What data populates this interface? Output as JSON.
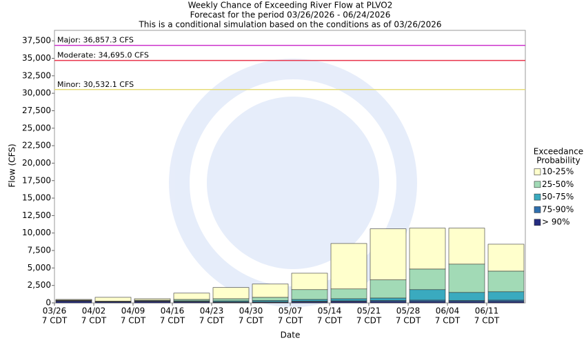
{
  "chart_data": {
    "type": "stacked-bar",
    "title": [
      "Weekly Chance of Exceeding River Flow at PLVO2",
      "Forecast for the period 03/26/2026 - 06/24/2026",
      "This is a conditional simulation based on the conditions as of 03/26/2026"
    ],
    "x_label": "Date",
    "y_label": "Flow (CFS)",
    "categories": [
      "03/26",
      "04/02",
      "04/09",
      "04/16",
      "04/23",
      "04/30",
      "05/07",
      "05/14",
      "05/21",
      "05/28",
      "06/04",
      "06/11"
    ],
    "time_label": "7 CDT",
    "ylim": [
      0,
      39000
    ],
    "yticks": [
      0,
      {
        "value": 2500,
        "label": "2,500"
      },
      {
        "value": 5000,
        "label": "5,000"
      },
      {
        "value": 7500,
        "label": "7,500"
      },
      {
        "value": 10000,
        "label": "10,000"
      },
      {
        "value": 12500,
        "label": "12,500"
      },
      {
        "value": 15000,
        "label": "15,000"
      },
      {
        "value": 17500,
        "label": "17,500"
      },
      {
        "value": 20000,
        "label": "20,000"
      },
      {
        "value": 22500,
        "label": "22,500"
      },
      {
        "value": 25000,
        "label": "25,000"
      },
      {
        "value": 27500,
        "label": "27,500"
      },
      {
        "value": 30000,
        "label": "30,000"
      },
      {
        "value": 32500,
        "label": "32,500"
      },
      {
        "value": 35000,
        "label": "35,000"
      },
      {
        "value": 37500,
        "label": "37,500"
      }
    ],
    "thresholds": [
      {
        "label": "Major: 36,857.3 CFS",
        "value": 36857.3,
        "color": "#cc33cc"
      },
      {
        "label": "Moderate: 34,695.0 CFS",
        "value": 34695.0,
        "color": "#e8334a"
      },
      {
        "label": "Minor: 30,532.1 CFS",
        "value": 30532.1,
        "color": "#e6dc78"
      }
    ],
    "legend_title": [
      "Exceedance",
      "Probability"
    ],
    "series": [
      {
        "name": "> 90%",
        "color": "#262c80",
        "values": [
          250,
          150,
          200,
          150,
          100,
          100,
          150,
          200,
          200,
          200,
          200,
          200
        ]
      },
      {
        "name": "75-90%",
        "color": "#2f6fae",
        "values": [
          50,
          30,
          50,
          50,
          50,
          50,
          100,
          100,
          150,
          200,
          150,
          200
        ]
      },
      {
        "name": "50-75%",
        "color": "#3aaabf",
        "values": [
          50,
          20,
          50,
          100,
          150,
          200,
          250,
          300,
          350,
          1500,
          1150,
          1200
        ]
      },
      {
        "name": "25-50%",
        "color": "#a2dab6",
        "values": [
          50,
          50,
          100,
          200,
          300,
          450,
          1400,
          1400,
          2600,
          2950,
          4050,
          2950
        ]
      },
      {
        "name": "10-25%",
        "color": "#ffffcc",
        "values": [
          100,
          550,
          200,
          900,
          1600,
          1900,
          2350,
          6500,
          7300,
          5850,
          5150,
          3850
        ]
      }
    ]
  }
}
